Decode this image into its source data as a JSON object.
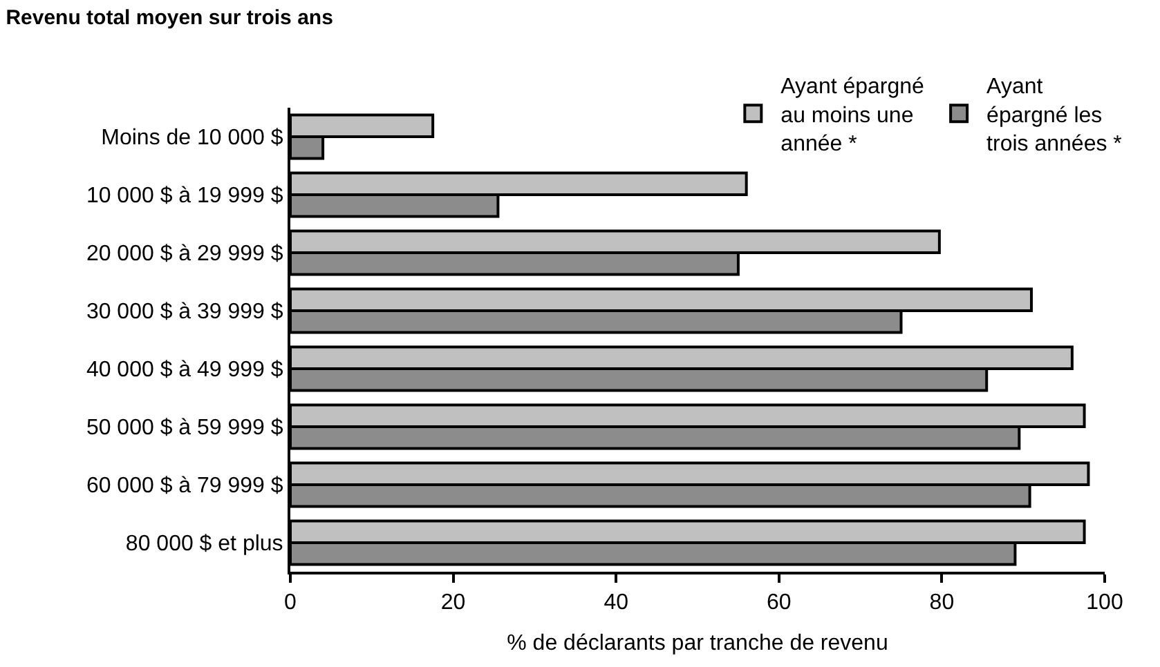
{
  "chart_data": {
    "type": "bar",
    "orientation": "horizontal",
    "title": "Revenu total moyen sur trois ans",
    "xlabel": "% de déclarants par tranche de revenu",
    "categories": [
      "Moins de 10 000 $",
      "10 000 $ à 19 999 $",
      "20 000 $ à 29 999 $",
      "30 000 $ à 39 999 $",
      "40 000 $ à 49 999 $",
      "50 000 $ à 59 999 $",
      "60 000 $ à 79 999 $",
      "80 000 $ et plus"
    ],
    "series": [
      {
        "name": "Ayant épargné\nau moins une\nannée *",
        "color": "#c0c0c0",
        "values": [
          17.5,
          56,
          79.7,
          91,
          96,
          97.5,
          98,
          97.5
        ]
      },
      {
        "name": "Ayant\népargné les\ntrois années *",
        "color": "#8c8c8c",
        "values": [
          4,
          25.5,
          55,
          75,
          85.5,
          89.5,
          90.8,
          89
        ]
      }
    ],
    "xlim": [
      0,
      100
    ],
    "xticks": [
      0,
      20,
      40,
      60,
      80,
      100
    ],
    "legend": "top right"
  }
}
